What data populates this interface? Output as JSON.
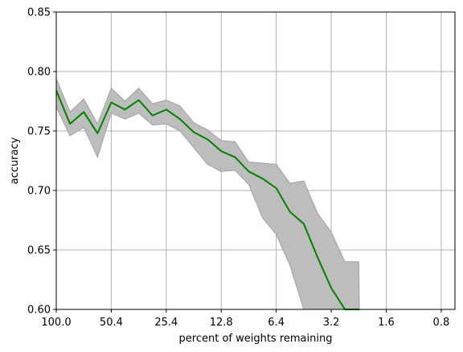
{
  "chart_data": {
    "type": "line",
    "title": "",
    "xlabel": "percent of weights remaining",
    "ylabel": "accuracy",
    "ylim": [
      0.6,
      0.85
    ],
    "xlim": [
      0,
      29
    ],
    "grid": true,
    "x_ticks": [
      {
        "pos": 0,
        "label": "100.0"
      },
      {
        "pos": 4,
        "label": "50.4"
      },
      {
        "pos": 8,
        "label": "25.4"
      },
      {
        "pos": 12,
        "label": "12.8"
      },
      {
        "pos": 16,
        "label": "6.4"
      },
      {
        "pos": 20,
        "label": "3.2"
      },
      {
        "pos": 24,
        "label": "1.6"
      },
      {
        "pos": 28,
        "label": "0.8"
      }
    ],
    "y_ticks": [
      "0.60",
      "0.65",
      "0.70",
      "0.75",
      "0.80",
      "0.85"
    ],
    "series": [
      {
        "color": "#008000",
        "band_color": "#bdbdbd",
        "x": [
          0,
          1,
          2,
          3,
          4,
          5,
          6,
          7,
          8,
          9,
          10,
          11,
          12,
          13,
          14,
          15,
          16,
          17,
          18,
          19,
          20,
          21,
          22,
          22.05
        ],
        "values": [
          0.784,
          0.756,
          0.766,
          0.748,
          0.774,
          0.768,
          0.776,
          0.763,
          0.768,
          0.76,
          0.749,
          0.743,
          0.733,
          0.728,
          0.716,
          0.71,
          0.702,
          0.682,
          0.672,
          0.644,
          0.618,
          0.6,
          0.6,
          0.6
        ],
        "upper": [
          0.794,
          0.766,
          0.777,
          0.756,
          0.786,
          0.775,
          0.786,
          0.773,
          0.776,
          0.771,
          0.757,
          0.751,
          0.742,
          0.741,
          0.724,
          0.723,
          0.722,
          0.706,
          0.708,
          0.681,
          0.665,
          0.64,
          0.64,
          0.6
        ],
        "lower": [
          0.77,
          0.746,
          0.753,
          0.728,
          0.765,
          0.76,
          0.765,
          0.755,
          0.756,
          0.75,
          0.736,
          0.722,
          0.716,
          0.717,
          0.705,
          0.677,
          0.663,
          0.637,
          0.6,
          0.6,
          0.6,
          0.6,
          0.6,
          0.6
        ]
      }
    ]
  }
}
